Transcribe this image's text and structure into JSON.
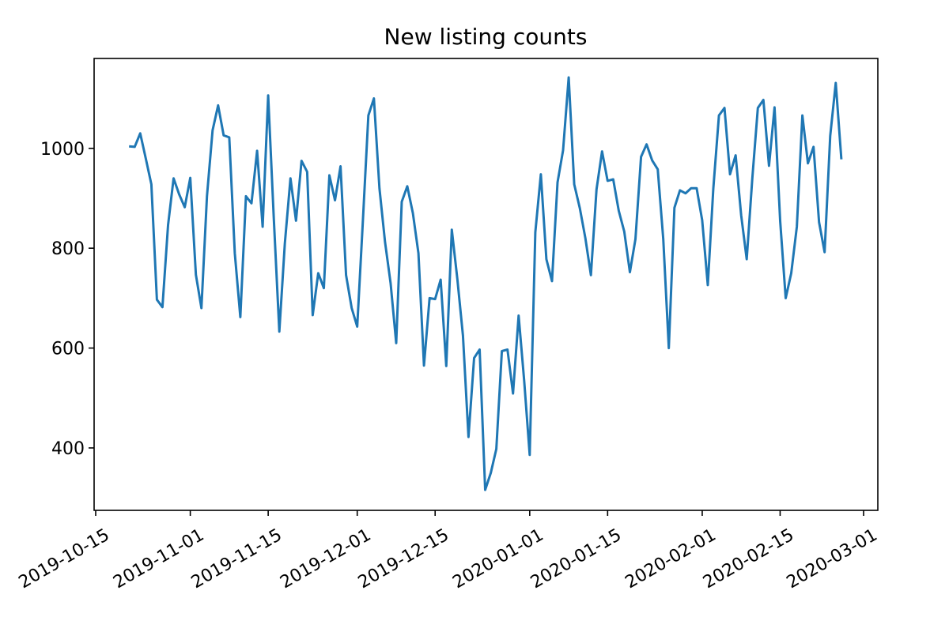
{
  "chart_data": {
    "type": "line",
    "title": "New listing counts",
    "xlabel": "",
    "ylabel": "",
    "xlim": [
      "2019-10-15",
      "2020-03-01"
    ],
    "ylim": [
      275,
      1180
    ],
    "grid": false,
    "color": "#1f77b4",
    "x_ticks": [
      "2019-10-15",
      "2019-11-01",
      "2019-11-15",
      "2019-12-01",
      "2019-12-15",
      "2020-01-01",
      "2020-01-15",
      "2020-02-01",
      "2020-02-15",
      "2020-03-01"
    ],
    "y_ticks": [
      400,
      600,
      800,
      1000
    ],
    "series": [
      {
        "x": [
          "2019-10-21",
          "2019-10-22",
          "2019-10-23",
          "2019-10-24",
          "2019-10-25",
          "2019-10-26",
          "2019-10-27",
          "2019-10-28",
          "2019-10-29",
          "2019-10-30",
          "2019-10-31",
          "2019-11-01",
          "2019-11-02",
          "2019-11-03",
          "2019-11-04",
          "2019-11-05",
          "2019-11-06",
          "2019-11-07",
          "2019-11-08",
          "2019-11-09",
          "2019-11-10",
          "2019-11-11",
          "2019-11-12",
          "2019-11-13",
          "2019-11-14",
          "2019-11-15",
          "2019-11-16",
          "2019-11-17",
          "2019-11-18",
          "2019-11-19",
          "2019-11-20",
          "2019-11-21",
          "2019-11-22",
          "2019-11-23",
          "2019-11-24",
          "2019-11-25",
          "2019-11-26",
          "2019-11-27",
          "2019-11-28",
          "2019-11-29",
          "2019-11-30",
          "2019-12-01",
          "2019-12-02",
          "2019-12-03",
          "2019-12-04",
          "2019-12-05",
          "2019-12-06",
          "2019-12-07",
          "2019-12-08",
          "2019-12-09",
          "2019-12-10",
          "2019-12-11",
          "2019-12-12",
          "2019-12-13",
          "2019-12-14",
          "2019-12-15",
          "2019-12-16",
          "2019-12-17",
          "2019-12-18",
          "2019-12-19",
          "2019-12-20",
          "2019-12-21",
          "2019-12-22",
          "2019-12-23",
          "2019-12-24",
          "2019-12-25",
          "2019-12-26",
          "2019-12-27",
          "2019-12-28",
          "2019-12-29",
          "2019-12-30",
          "2019-12-31",
          "2020-01-01",
          "2020-01-02",
          "2020-01-03",
          "2020-01-04",
          "2020-01-05",
          "2020-01-06",
          "2020-01-07",
          "2020-01-08",
          "2020-01-09",
          "2020-01-10",
          "2020-01-11",
          "2020-01-12",
          "2020-01-13",
          "2020-01-14",
          "2020-01-15",
          "2020-01-16",
          "2020-01-17",
          "2020-01-18",
          "2020-01-19",
          "2020-01-20",
          "2020-01-21",
          "2020-01-22",
          "2020-01-23",
          "2020-01-24",
          "2020-01-25",
          "2020-01-26",
          "2020-01-27",
          "2020-01-28",
          "2020-01-29",
          "2020-01-30",
          "2020-01-31",
          "2020-02-01",
          "2020-02-02",
          "2020-02-03",
          "2020-02-04",
          "2020-02-05",
          "2020-02-06",
          "2020-02-07",
          "2020-02-08",
          "2020-02-09",
          "2020-02-10",
          "2020-02-11",
          "2020-02-12",
          "2020-02-13",
          "2020-02-14",
          "2020-02-15",
          "2020-02-16",
          "2020-02-17",
          "2020-02-18",
          "2020-02-19",
          "2020-02-20",
          "2020-02-21",
          "2020-02-22",
          "2020-02-23",
          "2020-02-24",
          "2020-02-25",
          "2020-02-26"
        ],
        "values": [
          1004,
          1003,
          1030,
          980,
          928,
          697,
          682,
          846,
          940,
          908,
          882,
          941,
          747,
          680,
          904,
          1036,
          1086,
          1026,
          1022,
          790,
          662,
          904,
          890,
          995,
          843,
          1106,
          860,
          633,
          810,
          940,
          855,
          975,
          953,
          666,
          750,
          720,
          946,
          896,
          964,
          746,
          680,
          643,
          850,
          1066,
          1100,
          920,
          812,
          730,
          610,
          893,
          924,
          870,
          790,
          565,
          700,
          698,
          737,
          564,
          837,
          737,
          625,
          422,
          580,
          597,
          316,
          350,
          398,
          594,
          597,
          509,
          665,
          535,
          386,
          832,
          948,
          778,
          734,
          932,
          996,
          1142,
          928,
          880,
          820,
          746,
          918,
          994,
          935,
          938,
          875,
          833,
          752,
          818,
          983,
          1008,
          976,
          958,
          818,
          600,
          881,
          916,
          910,
          920,
          920,
          856,
          726,
          920,
          1066,
          1081,
          948,
          986,
          866,
          778,
          940,
          1081,
          1097,
          965,
          1082,
          855,
          700,
          750,
          843,
          1066,
          970,
          1003,
          852,
          792,
          1025,
          1131,
          978
        ]
      }
    ]
  }
}
